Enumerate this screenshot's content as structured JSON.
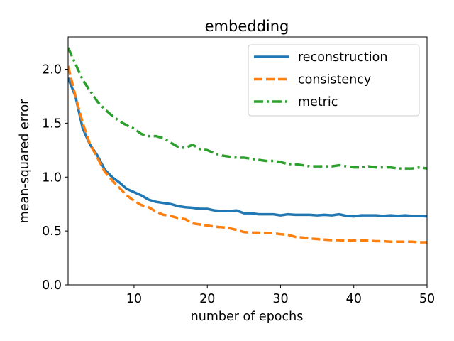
{
  "chart_data": {
    "type": "line",
    "title": "embedding",
    "xlabel": "number of epochs",
    "ylabel": "mean-squared error",
    "xlim": [
      1,
      50
    ],
    "ylim": [
      0,
      2.3
    ],
    "x_ticks": [
      10,
      20,
      30,
      40,
      50
    ],
    "x_tick_labels": [
      "10",
      "20",
      "30",
      "40",
      "50"
    ],
    "y_ticks": [
      0,
      0.5,
      1.0,
      1.5,
      2.0
    ],
    "y_tick_labels": [
      "0.0",
      "0.5",
      "1.0",
      "1.5",
      "2.0"
    ],
    "grid": false,
    "legend_position": "top-right",
    "series": [
      {
        "name": "reconstruction",
        "color": "#1f77b4",
        "dash": "solid",
        "x": [
          1,
          2,
          3,
          4,
          5,
          6,
          7,
          8,
          9,
          10,
          11,
          12,
          13,
          14,
          15,
          16,
          17,
          18,
          19,
          20,
          21,
          22,
          23,
          24,
          25,
          26,
          27,
          28,
          29,
          30,
          31,
          32,
          33,
          34,
          35,
          36,
          37,
          38,
          39,
          40,
          41,
          42,
          43,
          44,
          45,
          46,
          47,
          48,
          49,
          50
        ],
        "values": [
          1.92,
          1.75,
          1.45,
          1.3,
          1.2,
          1.07,
          1.0,
          0.95,
          0.89,
          0.86,
          0.83,
          0.79,
          0.77,
          0.76,
          0.75,
          0.73,
          0.72,
          0.715,
          0.705,
          0.705,
          0.69,
          0.685,
          0.685,
          0.69,
          0.665,
          0.665,
          0.655,
          0.655,
          0.655,
          0.645,
          0.655,
          0.65,
          0.65,
          0.65,
          0.645,
          0.65,
          0.645,
          0.655,
          0.64,
          0.635,
          0.645,
          0.645,
          0.645,
          0.64,
          0.645,
          0.64,
          0.645,
          0.64,
          0.64,
          0.635
        ]
      },
      {
        "name": "consistency",
        "color": "#ff7f0e",
        "dash": "dashed",
        "x": [
          1,
          2,
          3,
          4,
          5,
          6,
          7,
          8,
          9,
          10,
          11,
          12,
          13,
          14,
          15,
          16,
          17,
          18,
          19,
          20,
          21,
          22,
          23,
          24,
          25,
          26,
          27,
          28,
          29,
          30,
          31,
          32,
          33,
          34,
          35,
          36,
          37,
          38,
          39,
          40,
          41,
          42,
          43,
          44,
          45,
          46,
          47,
          48,
          49,
          50
        ],
        "values": [
          2.03,
          1.75,
          1.5,
          1.3,
          1.18,
          1.05,
          0.97,
          0.9,
          0.83,
          0.78,
          0.74,
          0.72,
          0.68,
          0.65,
          0.64,
          0.62,
          0.61,
          0.57,
          0.56,
          0.55,
          0.54,
          0.535,
          0.525,
          0.51,
          0.49,
          0.485,
          0.485,
          0.48,
          0.48,
          0.47,
          0.465,
          0.445,
          0.44,
          0.43,
          0.425,
          0.42,
          0.415,
          0.415,
          0.41,
          0.41,
          0.41,
          0.41,
          0.405,
          0.405,
          0.4,
          0.4,
          0.4,
          0.4,
          0.395,
          0.395
        ]
      },
      {
        "name": "metric",
        "color": "#2ca02c",
        "dash": "dashdot",
        "x": [
          1,
          2,
          3,
          4,
          5,
          6,
          7,
          8,
          9,
          10,
          11,
          12,
          13,
          14,
          15,
          16,
          17,
          18,
          19,
          20,
          21,
          22,
          23,
          24,
          25,
          26,
          27,
          28,
          29,
          30,
          31,
          32,
          33,
          34,
          35,
          36,
          37,
          38,
          39,
          40,
          41,
          42,
          43,
          44,
          45,
          46,
          47,
          48,
          49,
          50
        ],
        "values": [
          2.2,
          2.05,
          1.9,
          1.8,
          1.7,
          1.63,
          1.57,
          1.52,
          1.48,
          1.45,
          1.4,
          1.38,
          1.38,
          1.36,
          1.32,
          1.28,
          1.27,
          1.3,
          1.26,
          1.25,
          1.22,
          1.2,
          1.19,
          1.18,
          1.18,
          1.17,
          1.16,
          1.15,
          1.15,
          1.14,
          1.12,
          1.12,
          1.11,
          1.1,
          1.1,
          1.1,
          1.1,
          1.11,
          1.1,
          1.09,
          1.09,
          1.1,
          1.09,
          1.09,
          1.09,
          1.08,
          1.08,
          1.08,
          1.09,
          1.08
        ]
      }
    ]
  }
}
